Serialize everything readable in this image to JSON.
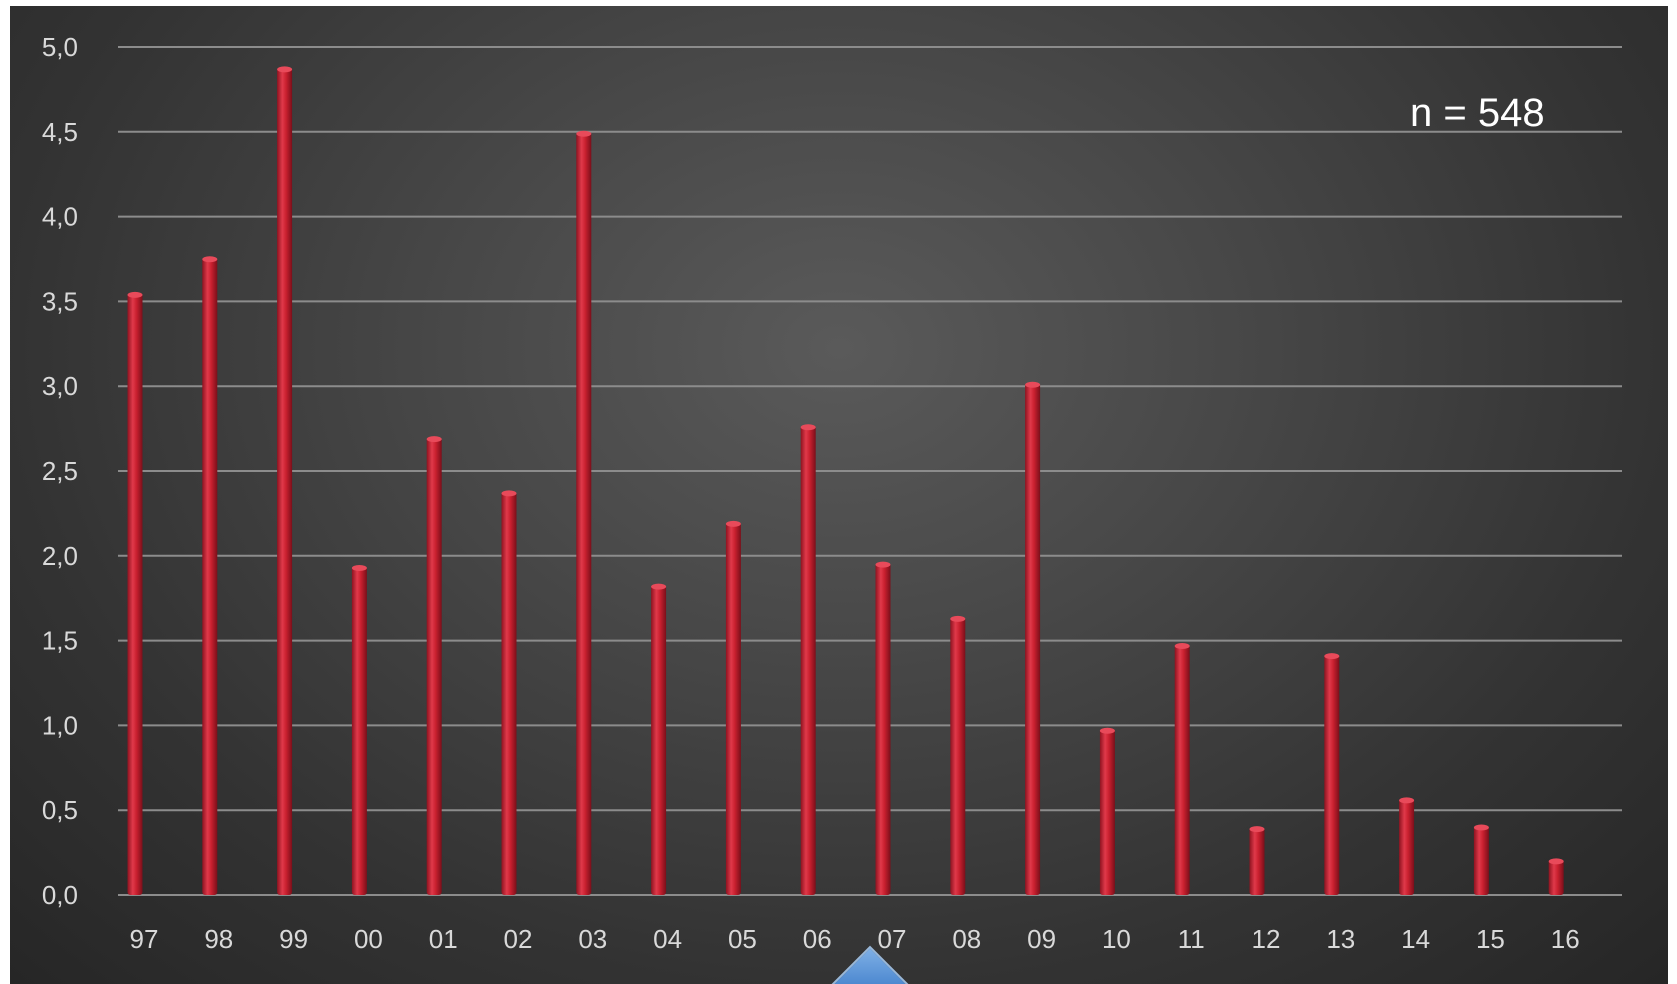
{
  "chart_data": {
    "type": "bar",
    "categories": [
      "97",
      "98",
      "99",
      "00",
      "01",
      "02",
      "03",
      "04",
      "05",
      "06",
      "07",
      "08",
      "09",
      "10",
      "11",
      "12",
      "13",
      "14",
      "15",
      "16"
    ],
    "values": [
      3.55,
      3.76,
      4.88,
      1.94,
      2.7,
      2.38,
      4.5,
      1.83,
      2.2,
      2.77,
      1.96,
      1.64,
      3.02,
      0.98,
      1.48,
      0.4,
      1.42,
      0.57,
      0.41,
      0.21
    ],
    "y_ticks": [
      "0,0",
      "0,5",
      "1,0",
      "1,5",
      "2,0",
      "2,5",
      "3,0",
      "3,5",
      "4,0",
      "4,5",
      "5,0"
    ],
    "ylim": [
      0,
      5
    ],
    "annotation": "n = 548",
    "grid": true,
    "bar_color": "#c9202f"
  }
}
